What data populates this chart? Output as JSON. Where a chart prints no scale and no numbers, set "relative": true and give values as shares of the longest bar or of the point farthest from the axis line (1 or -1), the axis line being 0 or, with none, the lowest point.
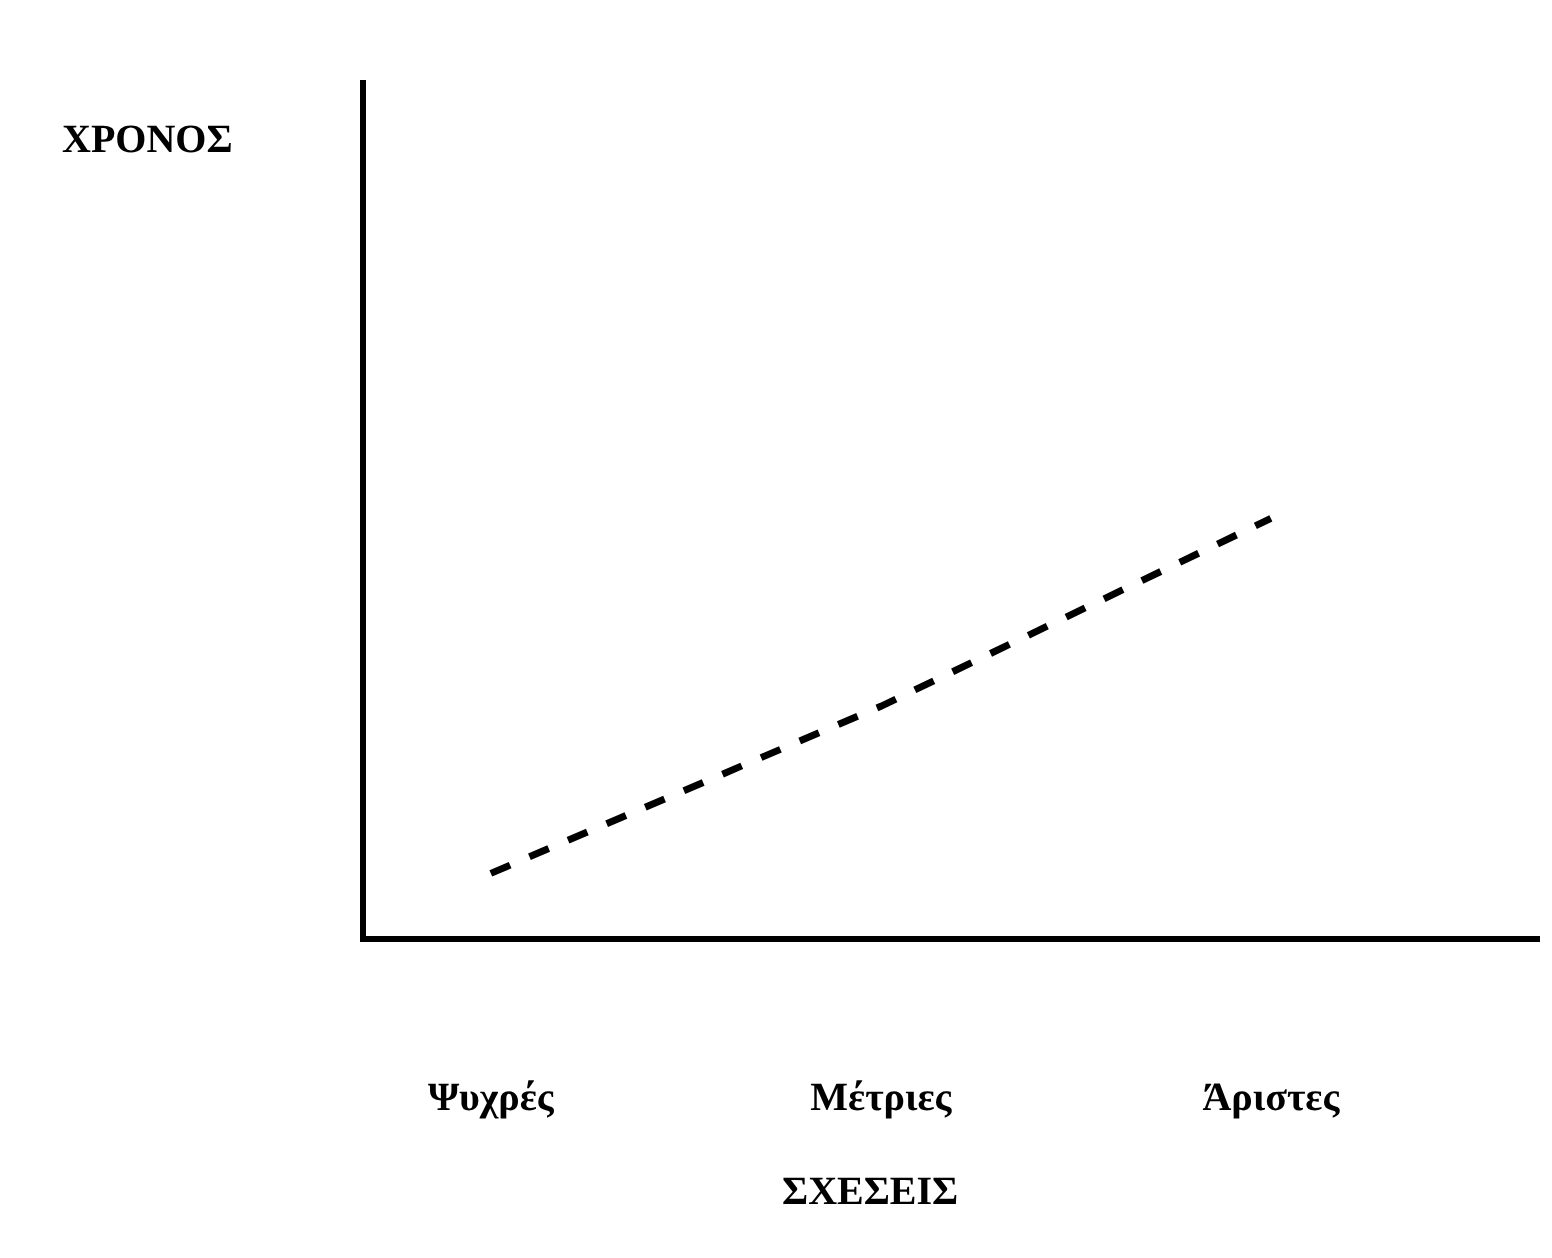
{
  "chart_data": {
    "type": "line",
    "relative": true,
    "xlabel": "ΣΧΕΣΕΙΣ",
    "annotations": [
      "ΧΡΟΝΟΣ"
    ],
    "categories": [
      "Ψυχρές",
      "Μέτριες",
      "Άριστες"
    ],
    "series": [
      {
        "color": "#000000",
        "values": [
          0.15,
          0.55,
          1
        ]
      }
    ],
    "line_style": "dashed",
    "marker": "none"
  }
}
